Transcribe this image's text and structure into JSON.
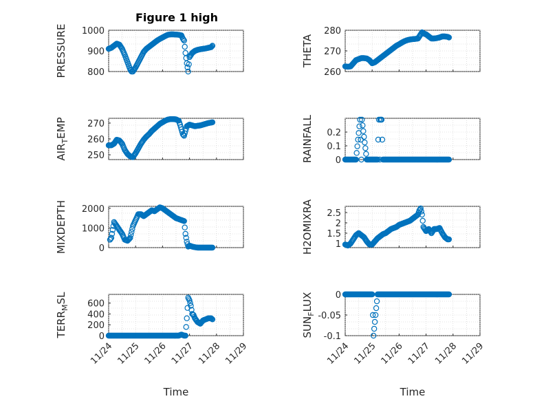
{
  "figure_title": "Figure 1 high",
  "colors": {
    "marker": "#0072BD",
    "axis": "#262626",
    "grid": "#c8c8c8"
  },
  "chart_data": [
    {
      "type": "scatter",
      "ylabel": "PRESSURE",
      "title": "Figure 1 high",
      "xlim": [
        0,
        5
      ],
      "ylim": [
        800,
        1000
      ],
      "yticks": [
        800,
        900,
        1000
      ],
      "yticklabels": [
        "800",
        "900",
        "1000"
      ],
      "grid": true,
      "points": [
        [
          0.0,
          910
        ],
        [
          0.1,
          915
        ],
        [
          0.2,
          925
        ],
        [
          0.3,
          935
        ],
        [
          0.4,
          930
        ],
        [
          0.5,
          910
        ],
        [
          0.6,
          880
        ],
        [
          0.7,
          845
        ],
        [
          0.8,
          810
        ],
        [
          0.85,
          800
        ],
        [
          0.9,
          800
        ],
        [
          1.0,
          820
        ],
        [
          1.1,
          845
        ],
        [
          1.2,
          870
        ],
        [
          1.3,
          895
        ],
        [
          1.4,
          910
        ],
        [
          1.5,
          920
        ],
        [
          1.6,
          930
        ],
        [
          1.7,
          940
        ],
        [
          1.8,
          950
        ],
        [
          1.9,
          958
        ],
        [
          2.0,
          965
        ],
        [
          2.1,
          972
        ],
        [
          2.2,
          978
        ],
        [
          2.3,
          980
        ],
        [
          2.4,
          980
        ],
        [
          2.5,
          979
        ],
        [
          2.6,
          978
        ],
        [
          2.7,
          975
        ],
        [
          2.75,
          960
        ],
        [
          2.8,
          950
        ],
        [
          2.85,
          890
        ],
        [
          2.9,
          840
        ],
        [
          2.95,
          800
        ],
        [
          3.0,
          870
        ],
        [
          3.1,
          890
        ],
        [
          3.2,
          900
        ],
        [
          3.3,
          905
        ],
        [
          3.4,
          908
        ],
        [
          3.5,
          910
        ],
        [
          3.6,
          912
        ],
        [
          3.7,
          915
        ],
        [
          3.8,
          918
        ],
        [
          3.85,
          925
        ]
      ]
    },
    {
      "type": "scatter",
      "ylabel": "THETA",
      "xlim": [
        0,
        5
      ],
      "ylim": [
        260,
        280
      ],
      "yticks": [
        260,
        270,
        280
      ],
      "yticklabels": [
        "260",
        "270",
        "280"
      ],
      "grid": true,
      "points": [
        [
          0.0,
          262.5
        ],
        [
          0.1,
          262.3
        ],
        [
          0.2,
          262.5
        ],
        [
          0.3,
          264
        ],
        [
          0.4,
          265.5
        ],
        [
          0.5,
          266
        ],
        [
          0.6,
          266.5
        ],
        [
          0.7,
          266.5
        ],
        [
          0.8,
          266.3
        ],
        [
          0.9,
          265.5
        ],
        [
          1.0,
          264
        ],
        [
          1.1,
          264.5
        ],
        [
          1.2,
          265.5
        ],
        [
          1.3,
          266.5
        ],
        [
          1.4,
          267.5
        ],
        [
          1.5,
          268.5
        ],
        [
          1.6,
          269.5
        ],
        [
          1.7,
          270.5
        ],
        [
          1.8,
          271.5
        ],
        [
          1.9,
          272.5
        ],
        [
          2.0,
          273.2
        ],
        [
          2.1,
          274
        ],
        [
          2.2,
          274.7
        ],
        [
          2.3,
          275.2
        ],
        [
          2.4,
          275.5
        ],
        [
          2.5,
          275.7
        ],
        [
          2.6,
          275.8
        ],
        [
          2.7,
          276
        ],
        [
          2.8,
          278
        ],
        [
          2.85,
          279
        ],
        [
          2.9,
          278.5
        ],
        [
          3.0,
          278
        ],
        [
          3.1,
          277
        ],
        [
          3.2,
          276
        ],
        [
          3.3,
          276
        ],
        [
          3.4,
          276.2
        ],
        [
          3.5,
          276.5
        ],
        [
          3.6,
          277
        ],
        [
          3.7,
          277
        ],
        [
          3.8,
          276.8
        ],
        [
          3.85,
          276.5
        ]
      ]
    },
    {
      "type": "scatter",
      "ylabel": "AIR_TEMP",
      "ylabel_parts": [
        "AIR",
        "T",
        "EMP"
      ],
      "xlim": [
        0,
        5
      ],
      "ylim": [
        247,
        273
      ],
      "yticks": [
        250,
        260,
        270
      ],
      "yticklabels": [
        "250",
        "260",
        "270"
      ],
      "grid": true,
      "points": [
        [
          0.0,
          256
        ],
        [
          0.1,
          256
        ],
        [
          0.2,
          257
        ],
        [
          0.3,
          259.5
        ],
        [
          0.4,
          259
        ],
        [
          0.5,
          257
        ],
        [
          0.6,
          253
        ],
        [
          0.7,
          250.5
        ],
        [
          0.8,
          249
        ],
        [
          0.9,
          248.5
        ],
        [
          1.0,
          251
        ],
        [
          1.1,
          254
        ],
        [
          1.2,
          257
        ],
        [
          1.3,
          259.5
        ],
        [
          1.4,
          261.5
        ],
        [
          1.5,
          263
        ],
        [
          1.6,
          265
        ],
        [
          1.7,
          266.5
        ],
        [
          1.8,
          268
        ],
        [
          1.9,
          269.5
        ],
        [
          2.0,
          270.5
        ],
        [
          2.1,
          271.5
        ],
        [
          2.2,
          272.2
        ],
        [
          2.3,
          272.5
        ],
        [
          2.4,
          272.5
        ],
        [
          2.5,
          272.3
        ],
        [
          2.6,
          271.5
        ],
        [
          2.65,
          269
        ],
        [
          2.7,
          266
        ],
        [
          2.75,
          263
        ],
        [
          2.8,
          262
        ],
        [
          2.9,
          268
        ],
        [
          3.0,
          269
        ],
        [
          3.1,
          268.5
        ],
        [
          3.2,
          268
        ],
        [
          3.3,
          268.3
        ],
        [
          3.4,
          268.5
        ],
        [
          3.5,
          269
        ],
        [
          3.6,
          269.5
        ],
        [
          3.7,
          270
        ],
        [
          3.8,
          270.3
        ],
        [
          3.85,
          270.5
        ]
      ]
    },
    {
      "type": "scatter",
      "ylabel": "RAINFALL",
      "xlim": [
        0,
        5
      ],
      "ylim": [
        0,
        0.3
      ],
      "yticks": [
        0,
        0.1,
        0.2
      ],
      "yticklabels": [
        "0",
        "0.1",
        "0.2"
      ],
      "grid": true,
      "points": [
        [
          0.0,
          0
        ],
        [
          0.2,
          0
        ],
        [
          0.4,
          0
        ],
        [
          0.6,
          0
        ],
        [
          0.8,
          0
        ],
        [
          1.0,
          0
        ],
        [
          1.2,
          0
        ],
        [
          1.4,
          0
        ],
        [
          1.6,
          0
        ],
        [
          1.8,
          0
        ],
        [
          2.0,
          0
        ],
        [
          2.2,
          0
        ],
        [
          2.4,
          0
        ],
        [
          2.6,
          0
        ],
        [
          2.8,
          0
        ],
        [
          3.0,
          0
        ],
        [
          3.2,
          0
        ],
        [
          3.4,
          0
        ],
        [
          3.6,
          0
        ],
        [
          3.8,
          0
        ],
        [
          3.85,
          0
        ],
        [
          0.55,
          0.29
        ],
        [
          0.62,
          0.29
        ],
        [
          1.25,
          0.29
        ],
        [
          1.3,
          0.29
        ],
        [
          1.35,
          0.29
        ],
        [
          1.28,
          0
        ]
      ]
    },
    {
      "type": "scatter",
      "ylabel": "MIXDEPTH",
      "xlim": [
        0,
        5
      ],
      "ylim": [
        0,
        2100
      ],
      "yticks": [
        0,
        1000,
        2000
      ],
      "yticklabels": [
        "0",
        "1000",
        "2000"
      ],
      "grid": true,
      "points": [
        [
          0.05,
          400
        ],
        [
          0.1,
          500
        ],
        [
          0.15,
          900
        ],
        [
          0.2,
          1300
        ],
        [
          0.3,
          1100
        ],
        [
          0.4,
          900
        ],
        [
          0.5,
          700
        ],
        [
          0.6,
          400
        ],
        [
          0.7,
          350
        ],
        [
          0.8,
          500
        ],
        [
          0.9,
          1100
        ],
        [
          1.0,
          1400
        ],
        [
          1.1,
          1700
        ],
        [
          1.2,
          1700
        ],
        [
          1.3,
          1600
        ],
        [
          1.4,
          1700
        ],
        [
          1.5,
          1800
        ],
        [
          1.6,
          1900
        ],
        [
          1.7,
          1850
        ],
        [
          1.8,
          1950
        ],
        [
          1.9,
          2050
        ],
        [
          2.0,
          2000
        ],
        [
          2.1,
          1900
        ],
        [
          2.2,
          1800
        ],
        [
          2.3,
          1700
        ],
        [
          2.4,
          1600
        ],
        [
          2.5,
          1500
        ],
        [
          2.6,
          1450
        ],
        [
          2.7,
          1400
        ],
        [
          2.8,
          1350
        ],
        [
          2.85,
          700
        ],
        [
          2.9,
          300
        ],
        [
          2.95,
          50
        ],
        [
          3.0,
          100
        ],
        [
          3.1,
          50
        ],
        [
          3.2,
          20
        ],
        [
          3.3,
          0
        ],
        [
          3.5,
          0
        ],
        [
          3.7,
          0
        ],
        [
          3.85,
          0
        ]
      ]
    },
    {
      "type": "scatter",
      "ylabel": "H2OMIXRA",
      "xlim": [
        0,
        5
      ],
      "ylim": [
        0.8,
        2.8
      ],
      "yticks": [
        1,
        1.5,
        2,
        2.5
      ],
      "yticklabels": [
        "1",
        "1.5",
        "2",
        "2.5"
      ],
      "grid": true,
      "points": [
        [
          0.0,
          0.95
        ],
        [
          0.1,
          0.9
        ],
        [
          0.2,
          1.0
        ],
        [
          0.3,
          1.2
        ],
        [
          0.4,
          1.4
        ],
        [
          0.5,
          1.5
        ],
        [
          0.6,
          1.4
        ],
        [
          0.7,
          1.3
        ],
        [
          0.8,
          1.1
        ],
        [
          0.9,
          0.95
        ],
        [
          1.0,
          0.95
        ],
        [
          1.1,
          1.1
        ],
        [
          1.2,
          1.25
        ],
        [
          1.3,
          1.35
        ],
        [
          1.4,
          1.45
        ],
        [
          1.5,
          1.5
        ],
        [
          1.6,
          1.6
        ],
        [
          1.7,
          1.7
        ],
        [
          1.8,
          1.75
        ],
        [
          1.9,
          1.8
        ],
        [
          2.0,
          1.9
        ],
        [
          2.1,
          1.95
        ],
        [
          2.2,
          2.0
        ],
        [
          2.3,
          2.05
        ],
        [
          2.4,
          2.1
        ],
        [
          2.5,
          2.2
        ],
        [
          2.6,
          2.3
        ],
        [
          2.7,
          2.4
        ],
        [
          2.75,
          2.6
        ],
        [
          2.8,
          2.7
        ],
        [
          2.85,
          2.4
        ],
        [
          2.9,
          1.8
        ],
        [
          3.0,
          1.6
        ],
        [
          3.1,
          1.7
        ],
        [
          3.2,
          1.5
        ],
        [
          3.3,
          1.7
        ],
        [
          3.4,
          1.7
        ],
        [
          3.5,
          1.75
        ],
        [
          3.6,
          1.5
        ],
        [
          3.7,
          1.3
        ],
        [
          3.8,
          1.2
        ],
        [
          3.85,
          1.2
        ]
      ]
    },
    {
      "type": "scatter",
      "ylabel": "TERR_MSL",
      "ylabel_parts": [
        "TERR",
        "M",
        "SL"
      ],
      "xlim": [
        0,
        5
      ],
      "ylim": [
        0,
        760
      ],
      "yticks": [
        0,
        200,
        400,
        600
      ],
      "yticklabels": [
        "0",
        "200",
        "400",
        "600"
      ],
      "xticks": [
        0,
        1,
        2,
        3,
        4,
        5
      ],
      "xticklabels": [
        "11/24",
        "11/25",
        "11/26",
        "11/27",
        "11/28",
        "11/29"
      ],
      "xlabel": "Time",
      "grid": true,
      "points": [
        [
          0.0,
          0
        ],
        [
          0.2,
          0
        ],
        [
          0.4,
          0
        ],
        [
          0.6,
          0
        ],
        [
          0.8,
          0
        ],
        [
          1.0,
          0
        ],
        [
          1.2,
          0
        ],
        [
          1.4,
          0
        ],
        [
          1.6,
          0
        ],
        [
          1.8,
          0
        ],
        [
          2.0,
          0
        ],
        [
          2.2,
          0
        ],
        [
          2.4,
          0
        ],
        [
          2.6,
          0
        ],
        [
          2.7,
          20
        ],
        [
          2.8,
          0
        ],
        [
          2.85,
          0
        ],
        [
          2.9,
          320
        ],
        [
          2.95,
          700
        ],
        [
          3.0,
          650
        ],
        [
          3.05,
          550
        ],
        [
          3.1,
          400
        ],
        [
          3.15,
          380
        ],
        [
          3.2,
          320
        ],
        [
          3.3,
          250
        ],
        [
          3.4,
          220
        ],
        [
          3.5,
          280
        ],
        [
          3.6,
          300
        ],
        [
          3.7,
          320
        ],
        [
          3.8,
          320
        ],
        [
          3.85,
          300
        ]
      ]
    },
    {
      "type": "scatter",
      "ylabel": "SUN_FLUX",
      "ylabel_parts": [
        "SUN",
        "F",
        "LUX"
      ],
      "xlim": [
        0,
        5
      ],
      "ylim": [
        -0.1,
        0
      ],
      "yticks": [
        -0.1,
        -0.05,
        0
      ],
      "yticklabels": [
        "-0.1",
        "-0.05",
        "0"
      ],
      "xticks": [
        0,
        1,
        2,
        3,
        4,
        5
      ],
      "xticklabels": [
        "11/24",
        "11/25",
        "11/26",
        "11/27",
        "11/28",
        "11/29"
      ],
      "xlabel": "Time",
      "grid": true,
      "points": [
        [
          0.0,
          0
        ],
        [
          0.2,
          0
        ],
        [
          0.4,
          0
        ],
        [
          0.6,
          0
        ],
        [
          0.8,
          0
        ],
        [
          1.0,
          0
        ],
        [
          1.2,
          0
        ],
        [
          1.4,
          0
        ],
        [
          1.6,
          0
        ],
        [
          1.8,
          0
        ],
        [
          2.0,
          0
        ],
        [
          2.2,
          0
        ],
        [
          2.4,
          0
        ],
        [
          2.6,
          0
        ],
        [
          2.8,
          0
        ],
        [
          3.0,
          0
        ],
        [
          3.2,
          0
        ],
        [
          3.4,
          0
        ],
        [
          3.6,
          0
        ],
        [
          3.8,
          0
        ],
        [
          3.85,
          0
        ],
        [
          1.05,
          -0.1
        ]
      ]
    }
  ]
}
